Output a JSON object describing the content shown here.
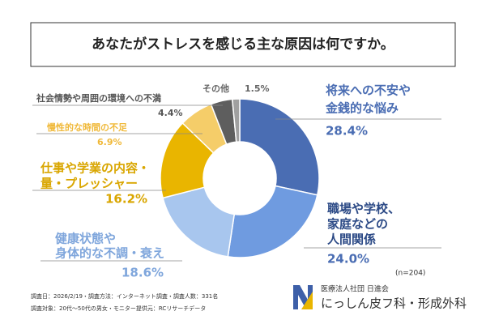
{
  "chart_data": {
    "type": "pie",
    "donut": true,
    "title": "あなたがストレスを感じる主な原因は何ですか。",
    "categories": [
      [
        "将来への不安や",
        "金銭的な悩み"
      ],
      [
        "職場や学校、",
        "家庭などの",
        "人間関係"
      ],
      [
        "健康状態や",
        "身体的な不調・衰え"
      ],
      [
        "仕事や学業の内容・",
        "量・プレッシャー"
      ],
      [
        "慢性的な時間の不足"
      ],
      [
        "社会情勢や周囲の環境への不満"
      ],
      [
        "その他"
      ]
    ],
    "values": [
      28.4,
      24.0,
      18.6,
      16.2,
      6.9,
      4.4,
      1.5
    ],
    "value_labels": [
      "28.4%",
      "24.0%",
      "18.6%",
      "16.2%",
      "6.9%",
      "4.4%",
      "1.5%"
    ],
    "colors": [
      "#4a6db3",
      "#6f9be0",
      "#a8c6ee",
      "#e9b500",
      "#f5cd69",
      "#5e5e5e",
      "#a0a0a0"
    ],
    "note": "(n=204)",
    "footer": [
      "調査日：2026/2/19・調査方法：インターネット調査・調査人数：331名",
      "調査対象：20代～50代の男女・モニター提供元：RCリサーチデータ"
    ],
    "brand": {
      "org": "医療法人社団 日進会",
      "name": "にっしん皮フ科・形成外科"
    }
  }
}
